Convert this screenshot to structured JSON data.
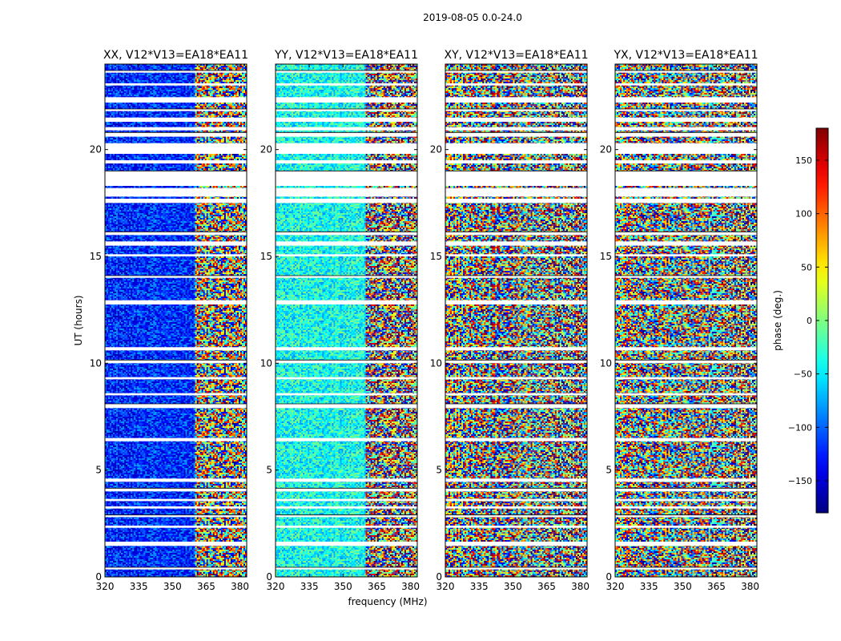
{
  "chart_data": {
    "type": "heatmap",
    "suptitle": "2019-08-05 0.0-24.0",
    "xlabel": "frequency (MHz)",
    "ylabel": "UT (hours)",
    "xlim": [
      320,
      383
    ],
    "ylim": [
      0,
      24
    ],
    "xticks": [
      320,
      335,
      350,
      365,
      380
    ],
    "yticks": [
      0,
      5,
      10,
      15,
      20
    ],
    "panels": [
      {
        "title": "XX, V12*V13=EA18*EA11",
        "pol": "XX",
        "coherent": true,
        "base_phase": -120,
        "split_freq": 360
      },
      {
        "title": "YY, V12*V13=EA18*EA11",
        "pol": "YY",
        "coherent": true,
        "base_phase": -40,
        "split_freq": 360
      },
      {
        "title": "XY, V12*V13=EA18*EA11",
        "pol": "XY",
        "coherent": false
      },
      {
        "title": "YX, V12*V13=EA18*EA11",
        "pol": "YX",
        "coherent": false
      }
    ],
    "flagged_time_ranges_hours": [
      [
        0.35,
        0.45
      ],
      [
        1.45,
        1.65
      ],
      [
        2.3,
        2.4
      ],
      [
        2.8,
        2.9
      ],
      [
        3.2,
        3.3
      ],
      [
        3.55,
        3.65
      ],
      [
        4.0,
        4.15
      ],
      [
        4.45,
        4.6
      ],
      [
        6.35,
        6.5
      ],
      [
        7.9,
        8.1
      ],
      [
        8.5,
        8.6
      ],
      [
        9.25,
        9.35
      ],
      [
        10.0,
        10.15
      ],
      [
        10.6,
        10.75
      ],
      [
        12.75,
        12.95
      ],
      [
        14.0,
        14.1
      ],
      [
        15.0,
        15.1
      ],
      [
        15.5,
        15.7
      ],
      [
        16.0,
        16.15
      ],
      [
        17.5,
        17.7
      ],
      [
        17.8,
        18.2
      ],
      [
        18.3,
        19.0
      ],
      [
        19.35,
        19.5
      ],
      [
        19.8,
        20.3
      ],
      [
        20.6,
        20.8
      ],
      [
        20.9,
        21.05
      ],
      [
        21.3,
        21.5
      ],
      [
        21.8,
        21.9
      ],
      [
        22.2,
        22.45
      ],
      [
        23.0,
        23.1
      ],
      [
        23.6,
        23.7
      ]
    ],
    "colorbar": {
      "label": "phase (deg.)",
      "range": [
        -180,
        180
      ],
      "ticks": [
        -150,
        -100,
        -50,
        0,
        50,
        100,
        150
      ],
      "tick_labels": [
        "−150",
        "−100",
        "−50",
        "0",
        "50",
        "100",
        "150"
      ],
      "colormap": "jet"
    }
  }
}
